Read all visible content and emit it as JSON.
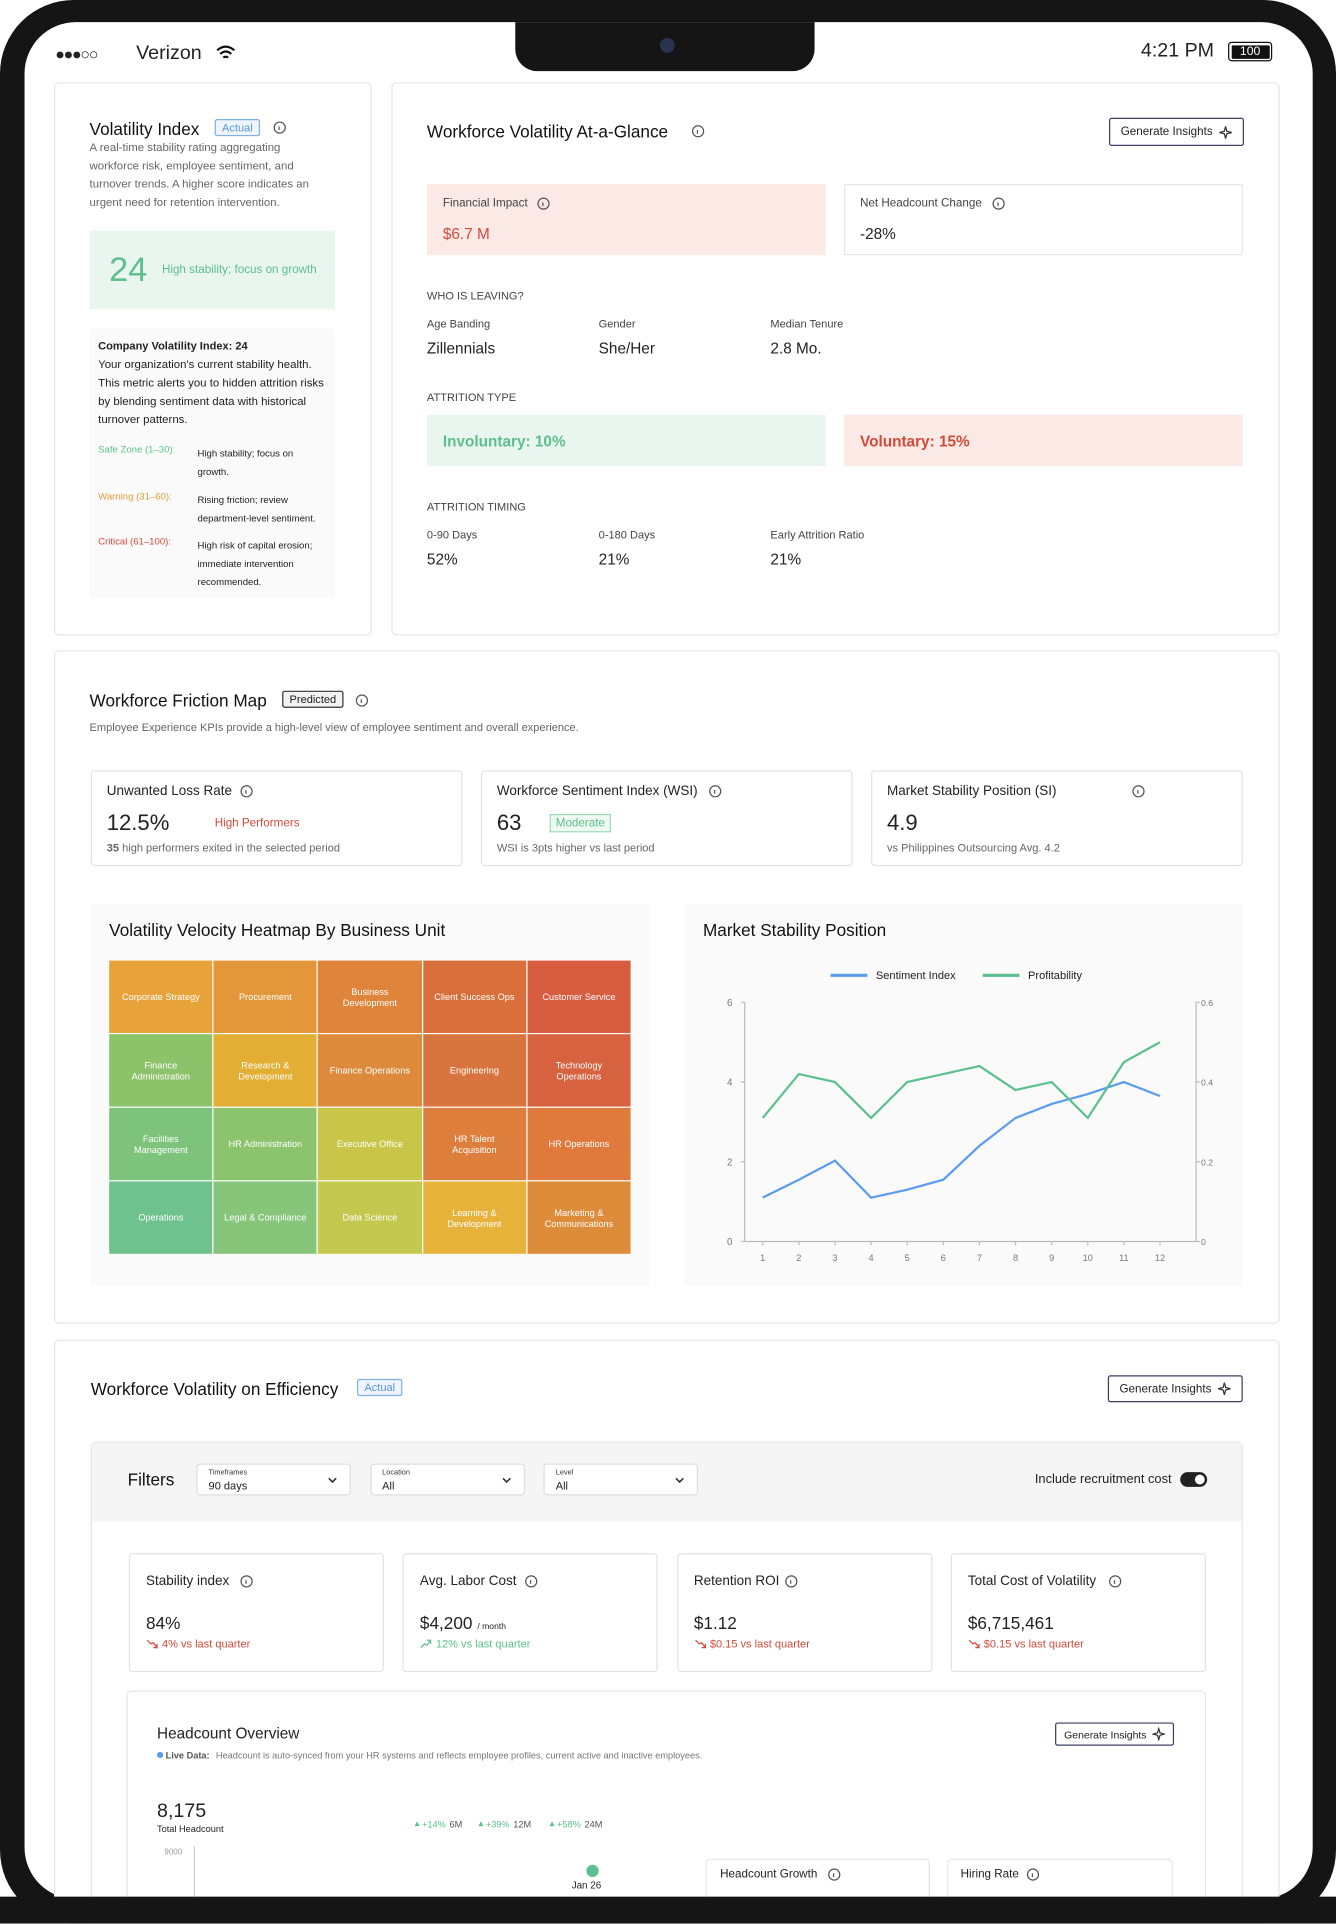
{
  "status": {
    "carrier": "Verizon",
    "time": "4:21 PM",
    "battery": "100"
  },
  "volatility_index": {
    "title": "Volatility Index",
    "badge": "Actual",
    "description": "A real-time stability rating aggregating workforce risk, employee sentiment, and turnover trends. A higher score indicates an urgent need for retention intervention.",
    "score": "24",
    "score_text": "High stability; focus on growth",
    "box_title": "Company Volatility Index: 24",
    "box_text": "Your organization's current stability health. This metric alerts you to hidden attrition risks by blending sentiment data with historical turnover patterns.",
    "zones": [
      {
        "label": "Safe Zone (1–30):",
        "text": "High stability; focus on growth.",
        "color": "#5dbf8c"
      },
      {
        "label": "Warning (31–60):",
        "text": "Rising friction; review department-level sentiment.",
        "color": "#e29a3a"
      },
      {
        "label": "Critical (61–100):",
        "text": "High risk of capital erosion; immediate intervention recommended.",
        "color": "#d24a3a"
      }
    ]
  },
  "glance": {
    "title": "Workforce Volatility At-a-Glance",
    "button": "Generate Insights",
    "financial_label": "Financial Impact",
    "financial_value": "$6.7 M",
    "headcount_label": "Net Headcount Change",
    "headcount_value": "-28%",
    "who_title": "WHO IS LEAVING?",
    "who": [
      {
        "label": "Age Banding",
        "value": "Zillennials"
      },
      {
        "label": "Gender",
        "value": "She/Her"
      },
      {
        "label": "Median Tenure",
        "value": "2.8 Mo."
      }
    ],
    "type_title": "ATTRITION TYPE",
    "involuntary": "Involuntary: 10%",
    "voluntary": "Voluntary: 15%",
    "timing_title": "ATTRITION TIMING",
    "timing": [
      {
        "label": "0-90 Days",
        "value": "52%"
      },
      {
        "label": "0-180 Days",
        "value": "21%"
      },
      {
        "label": "Early Attrition Ratio",
        "value": "21%"
      }
    ]
  },
  "friction": {
    "title": "Workforce Friction Map",
    "badge": "Predicted",
    "subtitle": "Employee Experience KPIs provide a high-level view of employee sentiment and overall experience.",
    "kpis": [
      {
        "label": "Unwanted Loss Rate",
        "value": "12.5%",
        "tag": "High Performers",
        "note_strong": "35",
        "note": "high performers exited in the selected period"
      },
      {
        "label": "Workforce Sentiment Index (WSI)",
        "value": "63",
        "tag": "Moderate",
        "note": "WSI is 3pts higher vs last period"
      },
      {
        "label": "Market Stability Position (SI)",
        "value": "4.9",
        "note": "vs Philippines Outsourcing Avg.",
        "note_strong": "4.2"
      }
    ]
  },
  "heatmap": {
    "title": "Volatility Velocity Heatmap By Business Unit",
    "rows": [
      [
        {
          "label": "Corporate Strategy",
          "color": "#e8a23a"
        },
        {
          "label": "Procurement",
          "color": "#e3963a"
        },
        {
          "label": "Business Development",
          "color": "#de853b"
        },
        {
          "label": "Client Success Ops",
          "color": "#d9703c"
        },
        {
          "label": "Customer Service",
          "color": "#d75c40"
        }
      ],
      [
        {
          "label": "Finance Administration",
          "color": "#8cc26a"
        },
        {
          "label": "Research & Development",
          "color": "#e2ae33"
        },
        {
          "label": "Finance Operations",
          "color": "#dd8a3c"
        },
        {
          "label": "Engineering",
          "color": "#d8743d"
        },
        {
          "label": "Technology Operations",
          "color": "#d6623f"
        }
      ],
      [
        {
          "label": "Facilities Management",
          "color": "#7dc37c"
        },
        {
          "label": "HR Administration",
          "color": "#8cc46e"
        },
        {
          "label": "Executive Office",
          "color": "#c8c648"
        },
        {
          "label": "HR Talent Acquisition",
          "color": "#de7e3c"
        },
        {
          "label": "HR Operations",
          "color": "#e07a3c"
        }
      ],
      [
        {
          "label": "Operations",
          "color": "#6fc18e"
        },
        {
          "label": "Legal & Compliance",
          "color": "#86c57a"
        },
        {
          "label": "Data Science",
          "color": "#c5c84e"
        },
        {
          "label": "Learning & Development",
          "color": "#e6b23a"
        },
        {
          "label": "Marketing & Communications",
          "color": "#dd8c3a"
        }
      ]
    ]
  },
  "chart_data": {
    "type": "line",
    "title": "Market Stability Position",
    "x": [
      1,
      2,
      3,
      4,
      5,
      6,
      7,
      8,
      9,
      10,
      11,
      12
    ],
    "xlim": [
      0.5,
      13
    ],
    "xticks": [
      1,
      2,
      3,
      4,
      5,
      6,
      7,
      8,
      9,
      10,
      11,
      12
    ],
    "ylim": [
      0,
      6
    ],
    "yticks": [
      0,
      2,
      4,
      6
    ],
    "y2lim": [
      0,
      0.6
    ],
    "y2ticks": [
      0,
      0.2,
      0.4,
      0.6
    ],
    "grid": false,
    "legend": "top",
    "series": [
      {
        "name": "Sentiment Index",
        "color": "#5b9bf0",
        "values": [
          1.1,
          1.55,
          2.03,
          1.1,
          1.3,
          1.55,
          2.4,
          3.1,
          3.45,
          3.7,
          4.0,
          3.65
        ]
      },
      {
        "name": "Profitability",
        "color": "#5bbf8f",
        "axis": "y2",
        "values": [
          0.31,
          0.42,
          0.4,
          0.31,
          0.4,
          0.42,
          0.44,
          0.38,
          0.4,
          0.31,
          0.45,
          0.5
        ]
      }
    ]
  },
  "efficiency": {
    "title": "Workforce Volatility on Efficiency",
    "badge": "Actual",
    "button": "Generate Insights",
    "filters_title": "Filters",
    "filters": [
      {
        "label": "Timeframes",
        "value": "90 days"
      },
      {
        "label": "Location",
        "value": "All"
      },
      {
        "label": "Level",
        "value": "All"
      }
    ],
    "toggle": "Include recruitment cost",
    "kpis": [
      {
        "label": "Stability index",
        "value": "84%",
        "change": "4% vs last quarter",
        "trend": "down"
      },
      {
        "label": "Avg. Labor Cost",
        "value": "$4,200",
        "unit": "/ month",
        "change": "12% vs last quarter",
        "trend": "up"
      },
      {
        "label": "Retention ROI",
        "value": "$1.12",
        "change": "$0.15 vs last quarter",
        "trend": "down"
      },
      {
        "label": "Total Cost of Volatility",
        "value": "$6,715,461",
        "change": "$0.15 vs last quarter",
        "trend": "down"
      }
    ]
  },
  "headcount": {
    "title": "Headcount Overview",
    "button": "Generate Insights",
    "live": "Live Data:",
    "live_text": "Headcount is auto-synced from your HR systems and reflects employee profiles, current active and inactive employees.",
    "total": "8,175",
    "total_label": "Total Headcount",
    "chips": [
      {
        "value": "+14%",
        "period": "6M"
      },
      {
        "value": "+39%",
        "period": "12M"
      },
      {
        "value": "+58%",
        "period": "24M"
      }
    ],
    "axis_top": "9000",
    "marker": "Jan 26",
    "cards": [
      "Headcount Growth",
      "Hiring Rate"
    ]
  }
}
